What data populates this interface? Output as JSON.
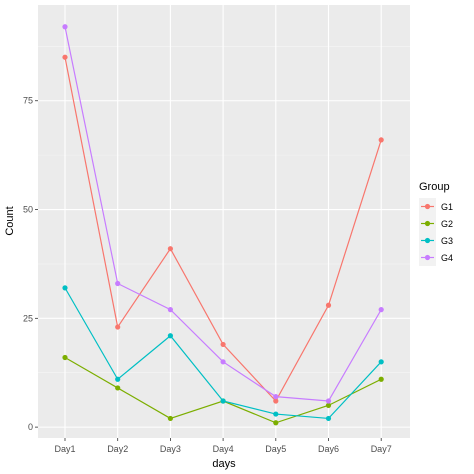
{
  "chart_data": {
    "type": "line",
    "title": "",
    "xlabel": "days",
    "ylabel": "Count",
    "categories": [
      "Day1",
      "Day2",
      "Day3",
      "Day4",
      "Day5",
      "Day6",
      "Day7"
    ],
    "y_ticks": [
      0,
      25,
      50,
      75
    ],
    "ylim": [
      -2.5,
      97
    ],
    "grid": true,
    "legend_position": "right",
    "legend_title": "Group",
    "panel_background": "#ebebeb",
    "series": [
      {
        "name": "G1",
        "color": "#f8766d",
        "values": [
          85,
          23,
          41,
          19,
          6,
          28,
          66
        ]
      },
      {
        "name": "G2",
        "color": "#7cae00",
        "values": [
          16,
          9,
          2,
          6,
          1,
          5,
          11
        ]
      },
      {
        "name": "G3",
        "color": "#00bfc4",
        "values": [
          32,
          11,
          21,
          6,
          3,
          2,
          15
        ]
      },
      {
        "name": "G4",
        "color": "#c77cff",
        "values": [
          92,
          33,
          27,
          15,
          7,
          6,
          27
        ]
      }
    ]
  }
}
